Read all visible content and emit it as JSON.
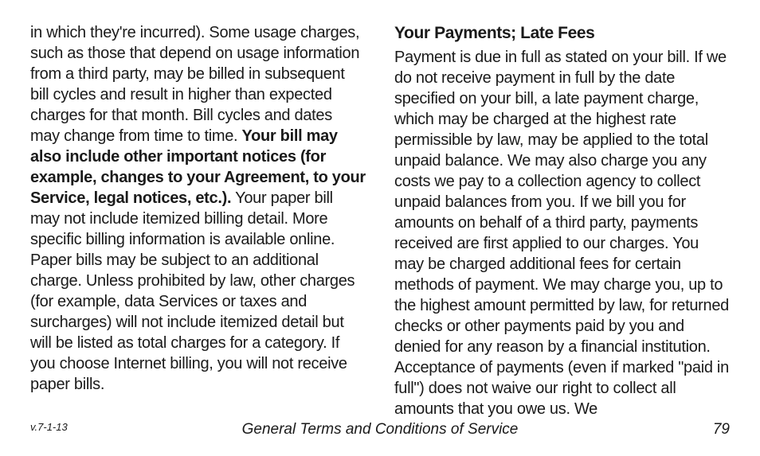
{
  "leftColumn": {
    "part1": "in which they're incurred). Some usage charges, such as those that depend on usage information from a third party, may be billed in subsequent bill cycles and result in higher than expected charges for that month. Bill cycles and dates may change from time to time. ",
    "boldPart": "Your bill may also include other important notices (for example, changes to your Agreement, to your Service, legal notices, etc.).",
    "part2": " Your paper bill may not include itemized billing detail. More specific billing information is available online. Paper bills may be subject to an additional charge. Unless prohibited by law, other charges (for example, data Services or taxes and surcharges) will not include itemized detail but will be listed as total charges for a category. If you choose Internet billing, you will not receive paper bills."
  },
  "rightColumn": {
    "heading": "Your Payments; Late Fees",
    "body": "Payment is due in full as stated on your bill. If we do not receive payment in full by the date specified on your bill, a late payment charge, which may be charged at the highest rate permissible by law, may be applied to the total unpaid balance. We may also charge you any costs we pay to a collection agency to collect unpaid balances from you. If we bill you for amounts on behalf of a third party, payments received are first applied to our charges. You may be charged additional fees for certain methods of payment. We may charge you, up to the highest amount permitted by law, for returned checks or other payments paid by you and denied for any reason by a financial institution. Acceptance of payments (even if marked \"paid in full\") does not waive our right to collect all amounts that you owe us. We"
  },
  "footer": {
    "version": "v.7-1-13",
    "title": "General Terms and Conditions of Service",
    "pageNumber": "79"
  }
}
